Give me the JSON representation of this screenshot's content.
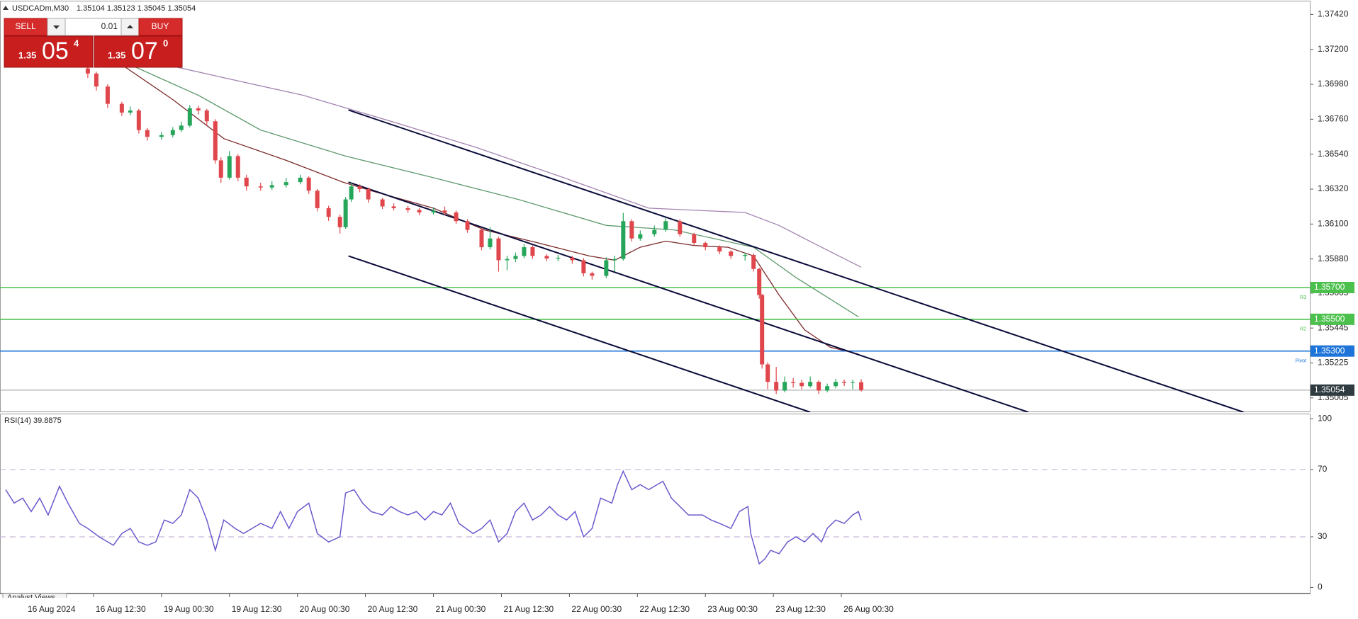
{
  "header": {
    "symbol": "USDCADm,M30",
    "ohlc": "1.35104 1.35123 1.35045 1.35054"
  },
  "trade_panel": {
    "sell": "SELL",
    "buy": "BUY",
    "volume": "0.01",
    "sell_quote": {
      "big": "1.35",
      "pips": "05",
      "point": "4"
    },
    "buy_quote": {
      "big": "1.35",
      "pips": "07",
      "point": "0"
    }
  },
  "footer_tab": "Analyst Views",
  "chart_data": {
    "type": "candlestick",
    "up_color": "#26a65b",
    "down_color": "#e0474c",
    "xlim": [
      0,
      462.6
    ],
    "ylim": [
      1.34915,
      1.37502
    ],
    "yticks": [
      {
        "value": 1.3742,
        "label": "1.37420"
      },
      {
        "value": 1.372,
        "label": "1.37200"
      },
      {
        "value": 1.3698,
        "label": "1.36980"
      },
      {
        "value": 1.3676,
        "label": "1.36760"
      },
      {
        "value": 1.3654,
        "label": "1.36540"
      },
      {
        "value": 1.3632,
        "label": "1.36320"
      },
      {
        "value": 1.361,
        "label": "1.36100"
      },
      {
        "value": 1.3588,
        "label": "1.35880"
      },
      {
        "value": 1.35665,
        "label": "1.35665"
      },
      {
        "value": 1.35445,
        "label": "1.35445"
      },
      {
        "value": 1.35225,
        "label": "1.35225"
      },
      {
        "value": 1.35005,
        "label": "1.35005"
      }
    ],
    "xticks": [
      {
        "value": 9,
        "label": "16 Aug 2024"
      },
      {
        "value": 33,
        "label": "16 Aug 12:30"
      },
      {
        "value": 57,
        "label": "19 Aug 00:30"
      },
      {
        "value": 81,
        "label": "19 Aug 12:30"
      },
      {
        "value": 105,
        "label": "20 Aug 00:30"
      },
      {
        "value": 129,
        "label": "20 Aug 12:30"
      },
      {
        "value": 153,
        "label": "21 Aug 00:30"
      },
      {
        "value": 177,
        "label": "21 Aug 12:30"
      },
      {
        "value": 201,
        "label": "22 Aug 00:30"
      },
      {
        "value": 225,
        "label": "22 Aug 12:30"
      },
      {
        "value": 249,
        "label": "23 Aug 00:30"
      },
      {
        "value": 273,
        "label": "23 Aug 12:30"
      },
      {
        "value": 297,
        "label": "26 Aug 00:30"
      }
    ],
    "x": [
      31,
      34,
      38,
      43,
      46,
      49,
      52,
      57,
      61,
      64,
      67,
      70,
      73,
      76,
      78,
      81,
      84,
      87,
      92,
      96,
      101,
      106,
      109,
      112,
      116,
      120,
      122,
      124,
      127,
      130,
      135,
      139,
      144,
      148,
      153,
      157,
      161,
      165,
      170,
      173,
      176,
      179,
      182,
      185,
      188,
      193,
      197,
      202,
      206,
      209,
      214,
      217,
      220,
      223,
      226,
      231,
      235,
      240,
      245,
      249,
      254,
      258,
      263,
      266,
      268,
      269,
      271,
      274,
      277,
      280,
      283,
      286,
      289,
      292,
      295,
      298,
      301,
      304
    ],
    "open": [
      1.3708,
      1.37048,
      1.36966,
      1.36857,
      1.36802,
      1.36815,
      1.36692,
      1.36649,
      1.3666,
      1.36692,
      1.3672,
      1.36829,
      1.36815,
      1.36747,
      1.36501,
      1.36392,
      1.36528,
      1.36392,
      1.36337,
      1.3633,
      1.36345,
      1.36364,
      1.36392,
      1.3631,
      1.362,
      1.36145,
      1.3608,
      1.36255,
      1.36337,
      1.3632,
      1.36255,
      1.36211,
      1.362,
      1.36189,
      1.36173,
      1.36185,
      1.36173,
      1.36118,
      1.36063,
      1.35954,
      1.36009,
      1.35872,
      1.3588,
      1.35899,
      1.35954,
      1.35899,
      1.35883,
      1.35888,
      1.35872,
      1.3579,
      1.35774,
      1.35872,
      1.3588,
      1.36118,
      1.36009,
      1.36036,
      1.36063,
      1.36118,
      1.36036,
      1.35981,
      1.35954,
      1.35927,
      1.35899,
      1.35905,
      1.35817,
      1.35653,
      1.35216,
      1.35106,
      1.35051,
      1.35106,
      1.351,
      1.35079,
      1.35106,
      1.35051,
      1.35079,
      1.35106,
      1.351,
      1.35104
    ],
    "high": [
      1.3711,
      1.3706,
      1.3698,
      1.3687,
      1.3684,
      1.36825,
      1.36705,
      1.3668,
      1.3671,
      1.36745,
      1.3685,
      1.36845,
      1.36825,
      1.3676,
      1.3652,
      1.3656,
      1.3654,
      1.3641,
      1.3636,
      1.3637,
      1.3639,
      1.3641,
      1.364,
      1.3632,
      1.36215,
      1.3616,
      1.3627,
      1.3636,
      1.3635,
      1.3633,
      1.36265,
      1.3623,
      1.36215,
      1.362,
      1.36205,
      1.3621,
      1.36185,
      1.3613,
      1.36075,
      1.3608,
      1.3602,
      1.359,
      1.3592,
      1.35975,
      1.35965,
      1.3591,
      1.35905,
      1.359,
      1.35885,
      1.358,
      1.3589,
      1.359,
      1.3617,
      1.3613,
      1.3606,
      1.3609,
      1.3614,
      1.3613,
      1.36045,
      1.3599,
      1.35965,
      1.35935,
      1.3592,
      1.35915,
      1.35825,
      1.3566,
      1.3523,
      1.352,
      1.3514,
      1.3513,
      1.3512,
      1.3514,
      1.35115,
      1.35095,
      1.35125,
      1.3512,
      1.3512,
      1.35123
    ],
    "low": [
      1.3702,
      1.3694,
      1.3683,
      1.3678,
      1.36785,
      1.3667,
      1.36625,
      1.3663,
      1.36645,
      1.3668,
      1.3671,
      1.3679,
      1.3672,
      1.3648,
      1.3636,
      1.3638,
      1.3637,
      1.3631,
      1.3631,
      1.36315,
      1.3633,
      1.3635,
      1.3629,
      1.3618,
      1.3612,
      1.3604,
      1.3607,
      1.3624,
      1.363,
      1.36235,
      1.36195,
      1.36185,
      1.3617,
      1.36155,
      1.3616,
      1.36155,
      1.361,
      1.36045,
      1.35935,
      1.3594,
      1.358,
      1.3581,
      1.3586,
      1.35885,
      1.3588,
      1.35865,
      1.35865,
      1.3585,
      1.3577,
      1.3575,
      1.3576,
      1.358,
      1.3587,
      1.3599,
      1.35995,
      1.3602,
      1.3605,
      1.3602,
      1.35965,
      1.35935,
      1.3591,
      1.3588,
      1.3587,
      1.358,
      1.3563,
      1.3519,
      1.3506,
      1.3503,
      1.3504,
      1.3507,
      1.3506,
      1.3507,
      1.3503,
      1.3504,
      1.35065,
      1.3508,
      1.3506,
      1.35045
    ],
    "close": [
      1.37048,
      1.36966,
      1.36857,
      1.36802,
      1.36815,
      1.36692,
      1.36649,
      1.3666,
      1.36692,
      1.3672,
      1.36829,
      1.36815,
      1.36747,
      1.36501,
      1.36392,
      1.36528,
      1.36392,
      1.36337,
      1.3633,
      1.36345,
      1.36364,
      1.36392,
      1.3631,
      1.362,
      1.36145,
      1.3608,
      1.36255,
      1.36337,
      1.3632,
      1.36255,
      1.36211,
      1.362,
      1.36189,
      1.36173,
      1.36185,
      1.36173,
      1.36118,
      1.36063,
      1.35954,
      1.36009,
      1.35872,
      1.3588,
      1.35899,
      1.35954,
      1.35899,
      1.35883,
      1.35888,
      1.35872,
      1.3579,
      1.35774,
      1.35872,
      1.3588,
      1.36118,
      1.36009,
      1.36036,
      1.36063,
      1.36118,
      1.36036,
      1.35981,
      1.35954,
      1.35927,
      1.35899,
      1.35905,
      1.35817,
      1.35653,
      1.35216,
      1.35106,
      1.35051,
      1.35106,
      1.351,
      1.35079,
      1.35106,
      1.35051,
      1.35079,
      1.35106,
      1.351,
      1.35104,
      1.35054
    ],
    "moving_averages": [
      {
        "color": "#7b2a2a",
        "x": [
          43,
          61,
          79,
          101,
          121,
          131,
          153,
          171,
          190,
          208,
          217,
          226,
          235,
          245,
          257,
          266,
          275,
          284,
          293,
          303
        ],
        "values": [
          1.37103,
          1.36884,
          1.36638,
          1.36501,
          1.36364,
          1.3631,
          1.362,
          1.36063,
          1.35981,
          1.35899,
          1.35872,
          1.35954,
          1.35992,
          1.35965,
          1.35954,
          1.35899,
          1.35653,
          1.35434,
          1.35325,
          1.35281
        ]
      },
      {
        "color": "#5f9a6e",
        "x": [
          46,
          70,
          92,
          122,
          153,
          183,
          214,
          238,
          266,
          281,
          303
        ],
        "values": [
          1.37103,
          1.36911,
          1.36692,
          1.36528,
          1.36392,
          1.36255,
          1.36091,
          1.36063,
          1.35954,
          1.35763,
          1.35516
        ]
      },
      {
        "color": "#a383b0",
        "x": [
          52,
          79,
          107,
          138,
          168,
          199,
          229,
          263,
          275,
          290,
          304
        ],
        "values": [
          1.3713,
          1.37021,
          1.36911,
          1.36747,
          1.36583,
          1.36392,
          1.362,
          1.36173,
          1.36091,
          1.35954,
          1.35828
        ]
      }
    ],
    "trendlines": [
      {
        "x": [
          123,
          439
        ],
        "values": [
          1.36818,
          1.34915
        ]
      },
      {
        "x": [
          123,
          363
        ],
        "values": [
          1.36364,
          1.34915
        ]
      },
      {
        "x": [
          123,
          286
        ],
        "values": [
          1.35899,
          1.34915
        ]
      }
    ],
    "trendline_color": "#0b0b3b",
    "levels": [
      {
        "name": "R3",
        "value": 1.357,
        "label": "1.35700",
        "color": "#4cc04c"
      },
      {
        "name": "R2",
        "value": 1.355,
        "label": "1.35500",
        "color": "#4cc04c"
      },
      {
        "name": "Pivot",
        "value": 1.353,
        "label": "1.35300",
        "color": "#1e74d8"
      }
    ],
    "current_price": {
      "value": 1.35054,
      "label": "1.35054"
    },
    "indicator": {
      "title": "RSI(14) 39.8875",
      "color": "#6a5acd",
      "ylim": [
        -3.6,
        103.1
      ],
      "yticks": [
        0,
        30,
        70,
        100
      ],
      "levels": [
        30,
        70
      ],
      "x": [
        2,
        5,
        8,
        11,
        14,
        17,
        21,
        24,
        28,
        31,
        35,
        40,
        43,
        46,
        49,
        52,
        55,
        58,
        61,
        64,
        67,
        70,
        73,
        76,
        79,
        83,
        86,
        89,
        92,
        96,
        99,
        102,
        105,
        109,
        112,
        116,
        120,
        122,
        125,
        128,
        131,
        135,
        138,
        141,
        144,
        147,
        150,
        153,
        156,
        159,
        162,
        167,
        170,
        173,
        176,
        179,
        182,
        185,
        188,
        191,
        194,
        197,
        200,
        203,
        206,
        209,
        212,
        216,
        218,
        220,
        223,
        226,
        229,
        234,
        237,
        240,
        243,
        248,
        251,
        254,
        258,
        261,
        264,
        265,
        268,
        270,
        272,
        275,
        278,
        281,
        284,
        287,
        290,
        292,
        295,
        298,
        301,
        303,
        304
      ],
      "values": [
        58,
        50,
        53,
        45,
        53,
        43,
        60,
        50,
        38,
        35,
        30,
        25,
        32,
        35,
        27,
        25,
        27,
        40,
        38,
        43,
        58,
        53,
        40,
        22,
        40,
        35,
        32,
        35,
        38,
        35,
        45,
        35,
        45,
        50,
        32,
        27,
        30,
        56,
        58,
        50,
        45,
        43,
        48,
        45,
        43,
        45,
        40,
        45,
        43,
        50,
        38,
        32,
        35,
        40,
        27,
        32,
        45,
        50,
        40,
        43,
        48,
        43,
        40,
        45,
        30,
        35,
        53,
        50,
        61,
        69,
        58,
        61,
        58,
        63,
        53,
        48,
        43,
        43,
        40,
        38,
        35,
        45,
        48,
        32,
        14,
        17,
        22,
        20,
        27,
        30,
        27,
        32,
        27,
        35,
        40,
        38,
        43,
        45,
        39.8875
      ]
    }
  }
}
